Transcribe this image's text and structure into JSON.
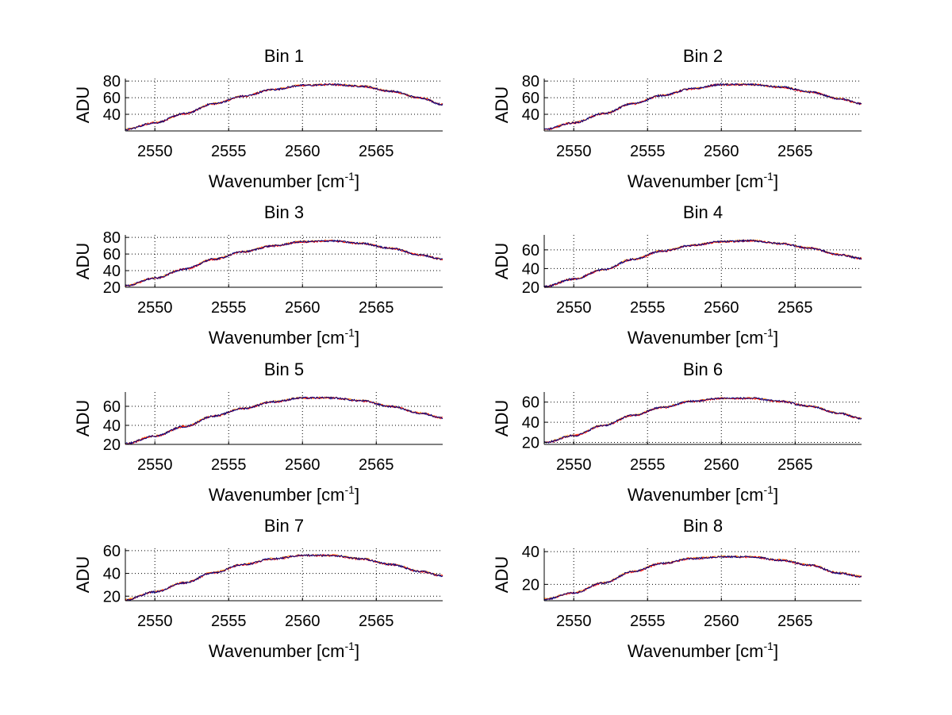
{
  "chart_data": [
    {
      "type": "line",
      "title": "Bin 1",
      "xlabel": "Wavenumber [cm",
      "xlabel_sup": "-1",
      "xlabel_end": "]",
      "ylabel": "ADU",
      "xlim": [
        2548,
        2569.5
      ],
      "ylim": [
        20,
        83
      ],
      "xticks": [
        2550,
        2555,
        2560,
        2565
      ],
      "yticks": [
        40,
        60,
        80
      ],
      "series": [
        {
          "color": "#ff8c00",
          "x": [
            2548,
            2550,
            2552,
            2554,
            2556,
            2558,
            2560,
            2562,
            2564,
            2566,
            2568,
            2569.5
          ],
          "y": [
            22,
            30,
            41,
            53,
            62,
            70,
            75,
            76,
            74,
            68,
            60,
            52
          ]
        },
        {
          "color": "#ff0000",
          "x": [
            2548,
            2550,
            2552,
            2554,
            2556,
            2558,
            2560,
            2562,
            2564,
            2566,
            2568,
            2569.5
          ],
          "y": [
            21.6,
            29.7,
            40.7,
            52.6,
            61.6,
            69.6,
            74.6,
            75.7,
            73.6,
            67.7,
            59.7,
            51.7
          ]
        },
        {
          "color": "#000080",
          "x": [
            2548,
            2550,
            2552,
            2554,
            2556,
            2558,
            2560,
            2562,
            2564,
            2566,
            2568,
            2569.5
          ],
          "y": [
            21.8,
            29.8,
            40.8,
            52.8,
            61.8,
            69.8,
            74.8,
            75.8,
            73.8,
            67.8,
            59.8,
            51.8
          ]
        }
      ]
    },
    {
      "type": "line",
      "title": "Bin 2",
      "xlabel": "Wavenumber [cm",
      "xlabel_sup": "-1",
      "xlabel_end": "]",
      "ylabel": "ADU",
      "xlim": [
        2548,
        2569.5
      ],
      "ylim": [
        20,
        83
      ],
      "xticks": [
        2550,
        2555,
        2560,
        2565
      ],
      "yticks": [
        40,
        60,
        80
      ],
      "series": [
        {
          "color": "#ff8c00",
          "x": [
            2548,
            2550,
            2552,
            2554,
            2556,
            2558,
            2560,
            2562,
            2564,
            2566,
            2568,
            2569.5
          ],
          "y": [
            22,
            30,
            41,
            53,
            63,
            71,
            76,
            76,
            73,
            67,
            59,
            53
          ]
        },
        {
          "color": "#ff0000",
          "x": [
            2548,
            2550,
            2552,
            2554,
            2556,
            2558,
            2560,
            2562,
            2564,
            2566,
            2568,
            2569.5
          ],
          "y": [
            21.6,
            29.7,
            40.7,
            52.6,
            62.6,
            70.6,
            75.6,
            75.7,
            72.6,
            66.7,
            58.7,
            52.7
          ]
        },
        {
          "color": "#000080",
          "x": [
            2548,
            2550,
            2552,
            2554,
            2556,
            2558,
            2560,
            2562,
            2564,
            2566,
            2568,
            2569.5
          ],
          "y": [
            21.8,
            29.8,
            40.8,
            52.8,
            62.8,
            70.8,
            75.8,
            75.8,
            72.8,
            66.8,
            58.8,
            52.8
          ]
        }
      ]
    },
    {
      "type": "line",
      "title": "Bin 3",
      "xlabel": "Wavenumber [cm",
      "xlabel_sup": "-1",
      "xlabel_end": "]",
      "ylabel": "ADU",
      "xlim": [
        2548,
        2569.5
      ],
      "ylim": [
        20,
        83
      ],
      "xticks": [
        2550,
        2555,
        2560,
        2565
      ],
      "yticks": [
        20,
        40,
        60,
        80
      ],
      "series": [
        {
          "color": "#ff8c00",
          "x": [
            2548,
            2550,
            2552,
            2554,
            2556,
            2558,
            2560,
            2562,
            2564,
            2566,
            2568,
            2569.5
          ],
          "y": [
            22,
            31,
            42,
            54,
            63,
            70,
            75,
            76,
            73,
            67,
            59,
            54
          ]
        },
        {
          "color": "#ff0000",
          "x": [
            2548,
            2550,
            2552,
            2554,
            2556,
            2558,
            2560,
            2562,
            2564,
            2566,
            2568,
            2569.5
          ],
          "y": [
            21.6,
            30.7,
            41.7,
            53.6,
            62.6,
            69.6,
            74.6,
            75.7,
            72.6,
            66.7,
            58.7,
            53.7
          ]
        },
        {
          "color": "#000080",
          "x": [
            2548,
            2550,
            2552,
            2554,
            2556,
            2558,
            2560,
            2562,
            2564,
            2566,
            2568,
            2569.5
          ],
          "y": [
            21.8,
            30.8,
            41.8,
            53.8,
            62.8,
            69.8,
            74.8,
            75.8,
            72.8,
            66.8,
            58.8,
            53.8
          ]
        }
      ]
    },
    {
      "type": "line",
      "title": "Bin 4",
      "xlabel": "Wavenumber [cm",
      "xlabel_sup": "-1",
      "xlabel_end": "]",
      "ylabel": "ADU",
      "xlim": [
        2548,
        2569.5
      ],
      "ylim": [
        20,
        76
      ],
      "xticks": [
        2550,
        2555,
        2560,
        2565
      ],
      "yticks": [
        20,
        40,
        60
      ],
      "series": [
        {
          "color": "#ff8c00",
          "x": [
            2548,
            2550,
            2552,
            2554,
            2556,
            2558,
            2560,
            2562,
            2564,
            2566,
            2568,
            2569.5
          ],
          "y": [
            21,
            29,
            39,
            50,
            59,
            65,
            69,
            70,
            67,
            62,
            55,
            51
          ]
        },
        {
          "color": "#ff0000",
          "x": [
            2548,
            2550,
            2552,
            2554,
            2556,
            2558,
            2560,
            2562,
            2564,
            2566,
            2568,
            2569.5
          ],
          "y": [
            20.6,
            28.7,
            38.7,
            49.6,
            58.6,
            64.6,
            68.6,
            69.7,
            66.6,
            61.7,
            54.7,
            50.7
          ]
        },
        {
          "color": "#000080",
          "x": [
            2548,
            2550,
            2552,
            2554,
            2556,
            2558,
            2560,
            2562,
            2564,
            2566,
            2568,
            2569.5
          ],
          "y": [
            20.8,
            28.8,
            38.8,
            49.8,
            58.8,
            64.8,
            68.8,
            69.8,
            66.8,
            61.8,
            54.8,
            50.8
          ]
        }
      ]
    },
    {
      "type": "line",
      "title": "Bin 5",
      "xlabel": "Wavenumber [cm",
      "xlabel_sup": "-1",
      "xlabel_end": "]",
      "ylabel": "ADU",
      "xlim": [
        2548,
        2569.5
      ],
      "ylim": [
        20,
        75
      ],
      "xticks": [
        2550,
        2555,
        2560,
        2565
      ],
      "yticks": [
        20,
        40,
        60
      ],
      "series": [
        {
          "color": "#ff8c00",
          "x": [
            2548,
            2550,
            2552,
            2554,
            2556,
            2558,
            2560,
            2562,
            2564,
            2566,
            2568,
            2569.5
          ],
          "y": [
            21,
            29,
            39,
            50,
            58,
            65,
            69,
            69,
            66,
            60,
            53,
            48
          ]
        },
        {
          "color": "#ff0000",
          "x": [
            2548,
            2550,
            2552,
            2554,
            2556,
            2558,
            2560,
            2562,
            2564,
            2566,
            2568,
            2569.5
          ],
          "y": [
            20.6,
            28.7,
            38.7,
            49.6,
            57.6,
            64.6,
            68.6,
            68.7,
            65.6,
            59.7,
            52.7,
            47.7
          ]
        },
        {
          "color": "#000080",
          "x": [
            2548,
            2550,
            2552,
            2554,
            2556,
            2558,
            2560,
            2562,
            2564,
            2566,
            2568,
            2569.5
          ],
          "y": [
            20.8,
            28.8,
            38.8,
            49.8,
            57.8,
            64.8,
            68.8,
            68.8,
            65.8,
            59.8,
            52.8,
            47.8
          ]
        }
      ]
    },
    {
      "type": "line",
      "title": "Bin 6",
      "xlabel": "Wavenumber [cm",
      "xlabel_sup": "-1",
      "xlabel_end": "]",
      "ylabel": "ADU",
      "xlim": [
        2548,
        2569.5
      ],
      "ylim": [
        18,
        70
      ],
      "xticks": [
        2550,
        2555,
        2560,
        2565
      ],
      "yticks": [
        20,
        40,
        60
      ],
      "series": [
        {
          "color": "#ff8c00",
          "x": [
            2548,
            2550,
            2552,
            2554,
            2556,
            2558,
            2560,
            2562,
            2564,
            2566,
            2568,
            2569.5
          ],
          "y": [
            20,
            27,
            37,
            47,
            55,
            61,
            64,
            64,
            61,
            56,
            49,
            44
          ]
        },
        {
          "color": "#ff0000",
          "x": [
            2548,
            2550,
            2552,
            2554,
            2556,
            2558,
            2560,
            2562,
            2564,
            2566,
            2568,
            2569.5
          ],
          "y": [
            19.6,
            26.7,
            36.7,
            46.6,
            54.6,
            60.6,
            63.6,
            63.7,
            60.6,
            55.7,
            48.7,
            43.7
          ]
        },
        {
          "color": "#000080",
          "x": [
            2548,
            2550,
            2552,
            2554,
            2556,
            2558,
            2560,
            2562,
            2564,
            2566,
            2568,
            2569.5
          ],
          "y": [
            19.8,
            26.8,
            36.8,
            46.8,
            54.8,
            60.8,
            63.8,
            63.8,
            60.8,
            55.8,
            48.8,
            43.8
          ]
        }
      ]
    },
    {
      "type": "line",
      "title": "Bin 7",
      "xlabel": "Wavenumber [cm",
      "xlabel_sup": "-1",
      "xlabel_end": "]",
      "ylabel": "ADU",
      "xlim": [
        2548,
        2569.5
      ],
      "ylim": [
        16,
        62
      ],
      "xticks": [
        2550,
        2555,
        2560,
        2565
      ],
      "yticks": [
        20,
        40,
        60
      ],
      "series": [
        {
          "color": "#ff8c00",
          "x": [
            2548,
            2550,
            2552,
            2554,
            2556,
            2558,
            2560,
            2562,
            2564,
            2566,
            2568,
            2569.5
          ],
          "y": [
            17,
            24,
            32,
            41,
            48,
            53,
            56,
            56,
            53,
            48,
            42,
            38
          ]
        },
        {
          "color": "#ff0000",
          "x": [
            2548,
            2550,
            2552,
            2554,
            2556,
            2558,
            2560,
            2562,
            2564,
            2566,
            2568,
            2569.5
          ],
          "y": [
            16.6,
            23.7,
            31.7,
            40.6,
            47.6,
            52.6,
            55.6,
            55.7,
            52.6,
            47.7,
            41.7,
            37.7
          ]
        },
        {
          "color": "#000080",
          "x": [
            2548,
            2550,
            2552,
            2554,
            2556,
            2558,
            2560,
            2562,
            2564,
            2566,
            2568,
            2569.5
          ],
          "y": [
            16.8,
            23.8,
            31.8,
            40.8,
            47.8,
            52.8,
            55.8,
            55.8,
            52.8,
            47.8,
            41.8,
            37.8
          ]
        }
      ]
    },
    {
      "type": "line",
      "title": "Bin 8",
      "xlabel": "Wavenumber [cm",
      "xlabel_sup": "-1",
      "xlabel_end": "]",
      "ylabel": "ADU",
      "xlim": [
        2548,
        2569.5
      ],
      "ylim": [
        10,
        42
      ],
      "xticks": [
        2550,
        2555,
        2560,
        2565
      ],
      "yticks": [
        20,
        40
      ],
      "series": [
        {
          "color": "#ff8c00",
          "x": [
            2548,
            2550,
            2552,
            2554,
            2556,
            2558,
            2560,
            2562,
            2564,
            2566,
            2568,
            2569.5
          ],
          "y": [
            11,
            15,
            21,
            28,
            33,
            36,
            37,
            37,
            35,
            32,
            27,
            25
          ]
        },
        {
          "color": "#ff0000",
          "x": [
            2548,
            2550,
            2552,
            2554,
            2556,
            2558,
            2560,
            2562,
            2564,
            2566,
            2568,
            2569.5
          ],
          "y": [
            10.7,
            14.7,
            20.7,
            27.6,
            32.7,
            35.7,
            36.7,
            36.7,
            34.7,
            31.7,
            26.7,
            24.7
          ]
        },
        {
          "color": "#000080",
          "x": [
            2548,
            2550,
            2552,
            2554,
            2556,
            2558,
            2560,
            2562,
            2564,
            2566,
            2568,
            2569.5
          ],
          "y": [
            10.8,
            14.8,
            20.8,
            27.8,
            32.8,
            35.8,
            36.8,
            36.8,
            34.8,
            31.8,
            26.8,
            24.8
          ]
        }
      ]
    }
  ]
}
